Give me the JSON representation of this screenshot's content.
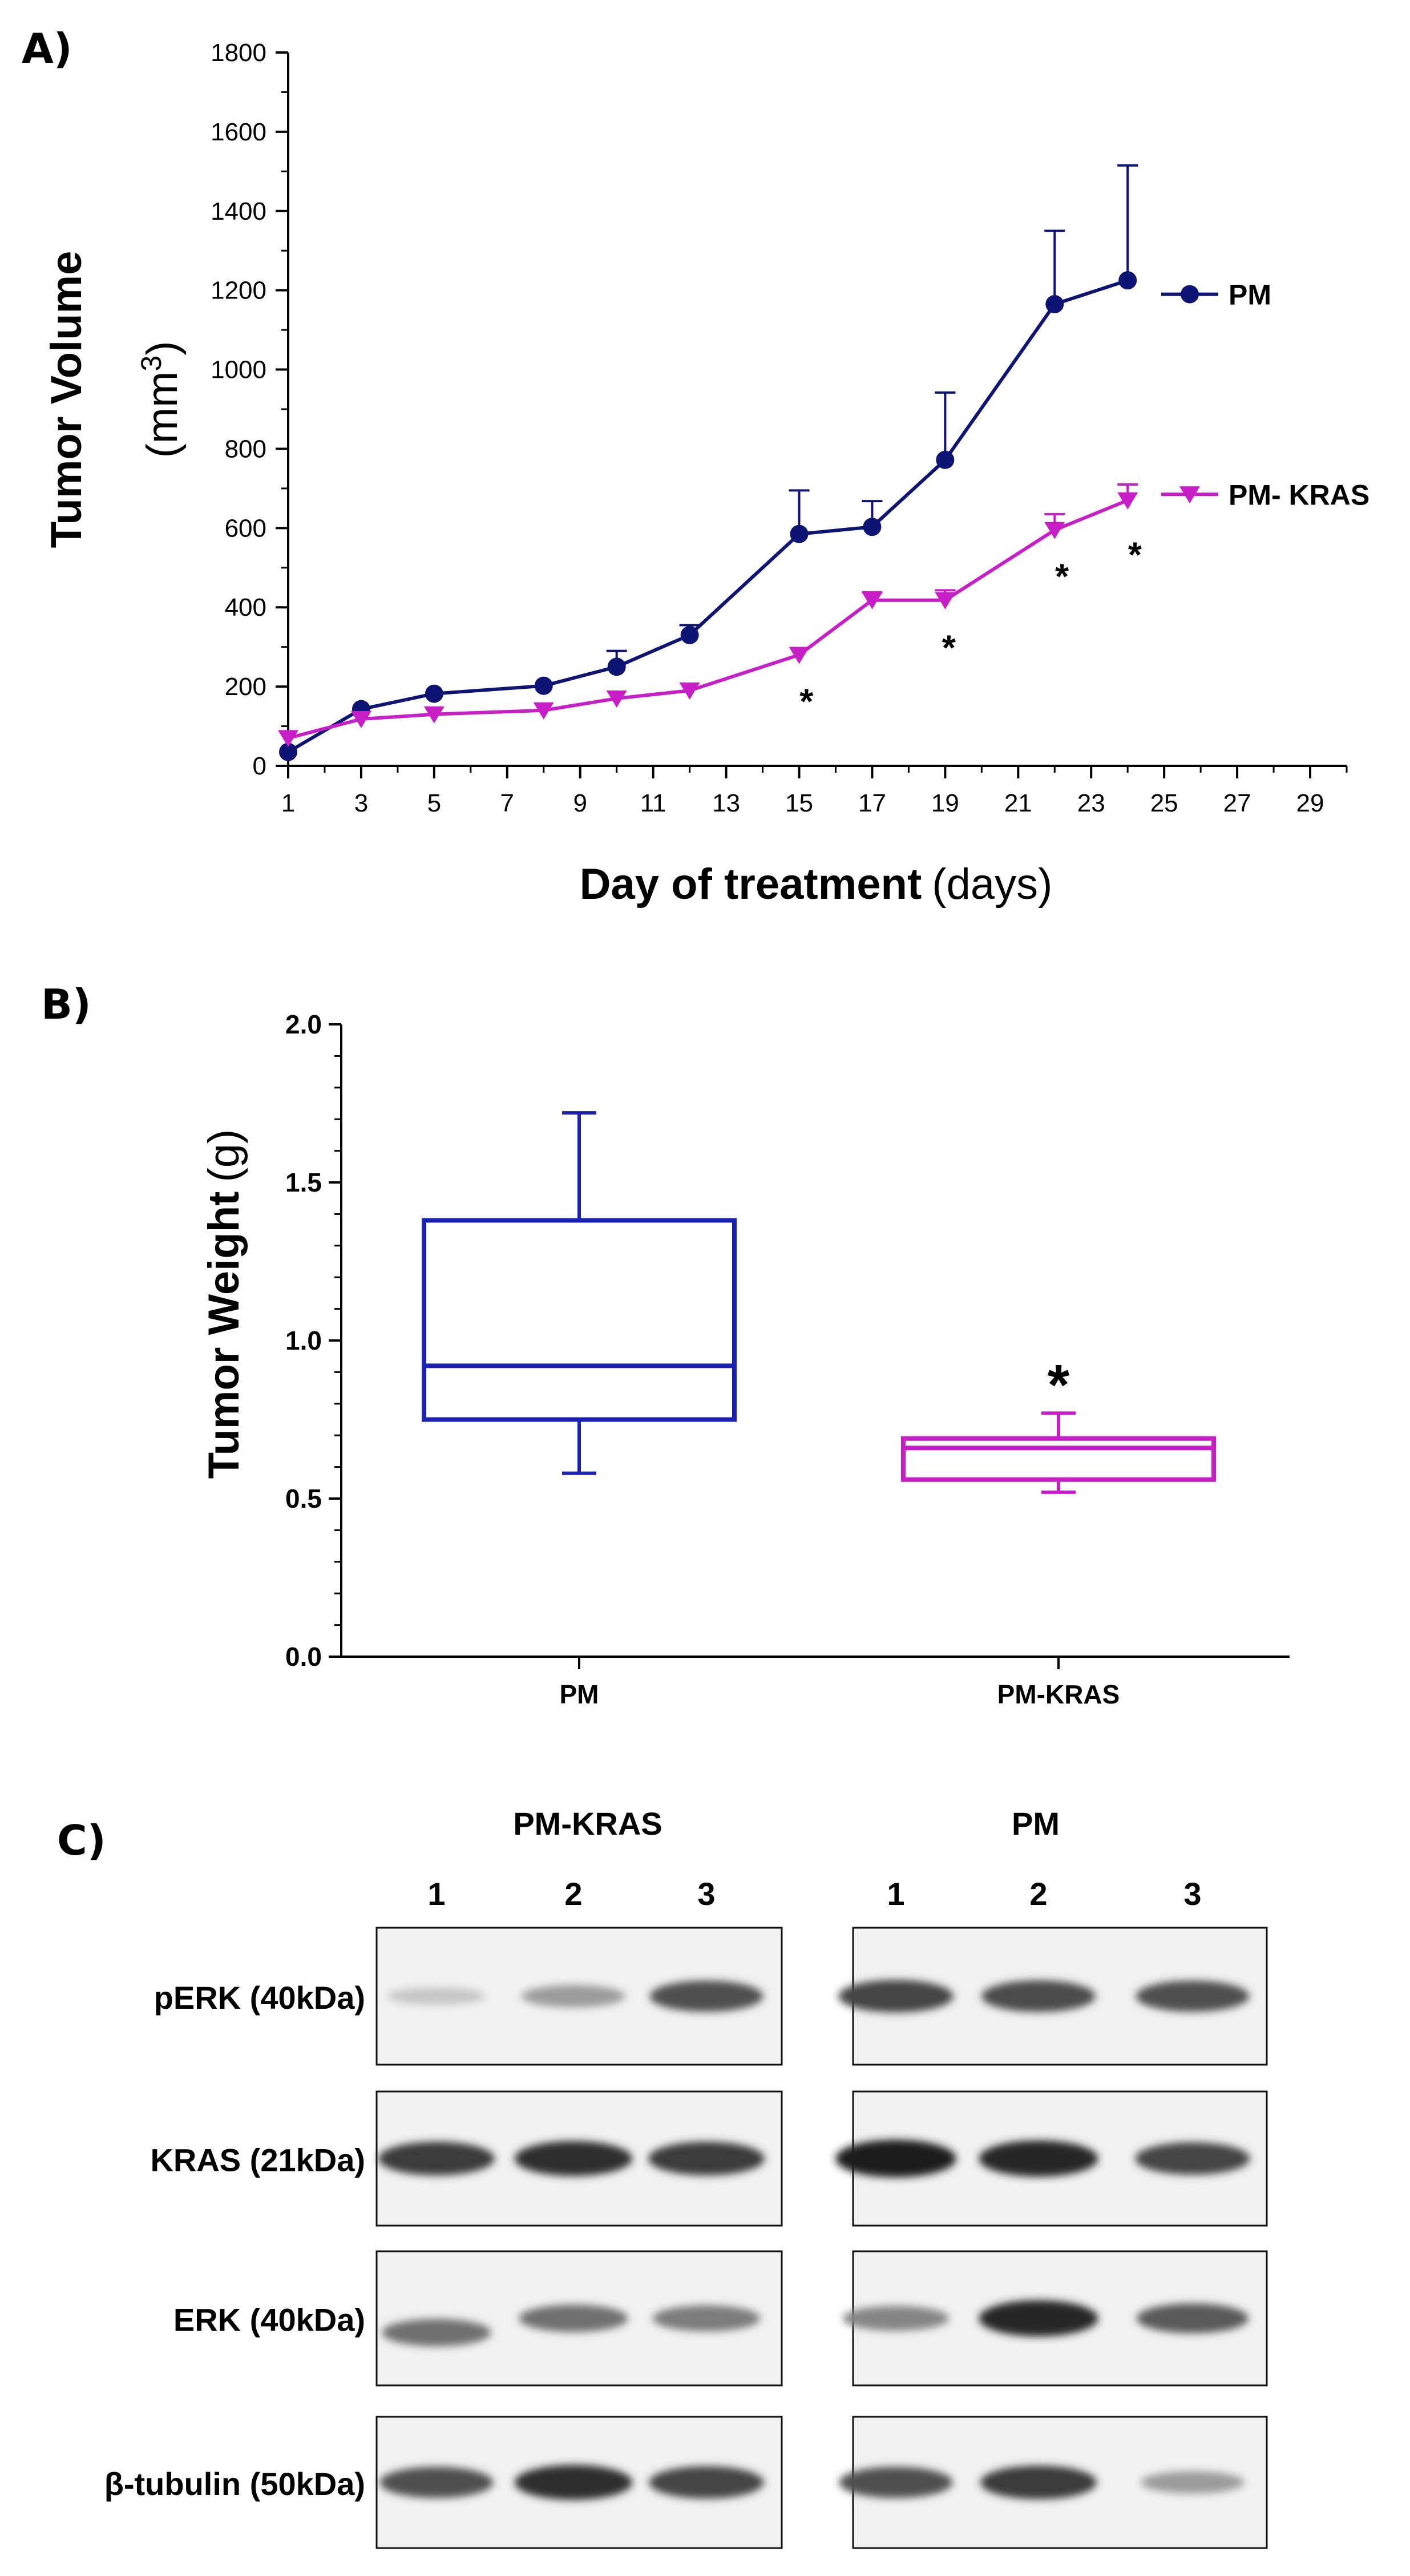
{
  "panels": {
    "a": {
      "letter": "A)"
    },
    "b": {
      "letter": "B)"
    },
    "c": {
      "letter": "C)"
    }
  },
  "colors": {
    "pm": "#0d1473",
    "pm_kras": "#c81ec8",
    "pm_box": "#1c22b4",
    "axis": "#000000"
  },
  "chart_data": [
    {
      "type": "line",
      "title": "",
      "xlabel_bold": "Day of treatment",
      "xlabel_unit": "(days)",
      "ylabel_bold": "Tumor Volume",
      "ylabel_unit_base": "(mm",
      "ylabel_unit_sup": "3",
      "ylabel_unit_close": ")",
      "xlim": [
        1,
        30
      ],
      "ylim": [
        0,
        1800
      ],
      "x_ticks": [
        1,
        3,
        5,
        7,
        9,
        11,
        13,
        15,
        17,
        19,
        21,
        23,
        25,
        27,
        29
      ],
      "y_ticks": [
        0,
        200,
        400,
        600,
        800,
        1000,
        1200,
        1400,
        1600,
        1800
      ],
      "legend_position": "right",
      "series": [
        {
          "name": "PM",
          "marker": "circle",
          "color": "#0d1473",
          "x": [
            1,
            3,
            5,
            8,
            10,
            12,
            15,
            17,
            19,
            22,
            24
          ],
          "y": [
            35,
            143,
            182,
            202,
            250,
            330,
            585,
            603,
            772,
            1165,
            1225
          ],
          "error": [
            0,
            0,
            0,
            0,
            40,
            25,
            110,
            65,
            170,
            185,
            290
          ]
        },
        {
          "name": "PM- KRAS",
          "marker": "triangle-down",
          "color": "#c81ec8",
          "x": [
            1,
            3,
            5,
            8,
            10,
            12,
            15,
            17,
            19,
            22,
            24
          ],
          "y": [
            70,
            118,
            130,
            140,
            170,
            190,
            280,
            418,
            418,
            595,
            670
          ],
          "error": [
            0,
            0,
            0,
            0,
            0,
            0,
            0,
            20,
            25,
            40,
            40
          ]
        }
      ],
      "annotations": [
        {
          "text": "*",
          "x": 15.2,
          "y": 175
        },
        {
          "text": "*",
          "x": 19.1,
          "y": 310
        },
        {
          "text": "*",
          "x": 22.2,
          "y": 490
        },
        {
          "text": "*",
          "x": 24.2,
          "y": 545
        }
      ]
    },
    {
      "type": "box",
      "title": "",
      "xlabel": "",
      "ylabel_bold": "Tumor Weight",
      "ylabel_unit": "(g)",
      "ylim": [
        0,
        2.0
      ],
      "y_ticks": [
        "0.0",
        "0.5",
        "1.0",
        "1.5",
        "2.0"
      ],
      "categories": [
        "PM",
        "PM-KRAS"
      ],
      "boxes": [
        {
          "name": "PM",
          "min": 0.58,
          "q1": 0.75,
          "median": 0.92,
          "q3": 1.38,
          "max": 1.72,
          "color": "#1c22b4"
        },
        {
          "name": "PM-KRAS",
          "min": 0.52,
          "q1": 0.56,
          "median": 0.66,
          "q3": 0.69,
          "max": 0.77,
          "color": "#c81ec8"
        }
      ],
      "annotations": [
        {
          "text": "*",
          "category": "PM-KRAS",
          "y": 0.87
        }
      ]
    }
  ],
  "blots": {
    "groups": [
      {
        "title": "PM-KRAS",
        "lanes": [
          "1",
          "2",
          "3"
        ]
      },
      {
        "title": "PM",
        "lanes": [
          "1",
          "2",
          "3"
        ]
      }
    ],
    "rows": [
      {
        "label": "pERK (40kDa)",
        "pm_kras_intensity": [
          0.15,
          0.35,
          0.7
        ],
        "pm_intensity": [
          0.75,
          0.72,
          0.7
        ]
      },
      {
        "label": "KRAS (21kDa)",
        "pm_kras_intensity": [
          0.8,
          0.85,
          0.8
        ],
        "pm_intensity": [
          0.95,
          0.9,
          0.75
        ]
      },
      {
        "label": "ERK (40kDa)",
        "pm_kras_intensity": [
          0.55,
          0.55,
          0.5
        ],
        "pm_intensity": [
          0.45,
          0.9,
          0.65
        ]
      },
      {
        "label": "β-tubulin (50kDa)",
        "pm_kras_intensity": [
          0.7,
          0.85,
          0.75
        ],
        "pm_intensity": [
          0.7,
          0.8,
          0.35
        ]
      }
    ]
  }
}
